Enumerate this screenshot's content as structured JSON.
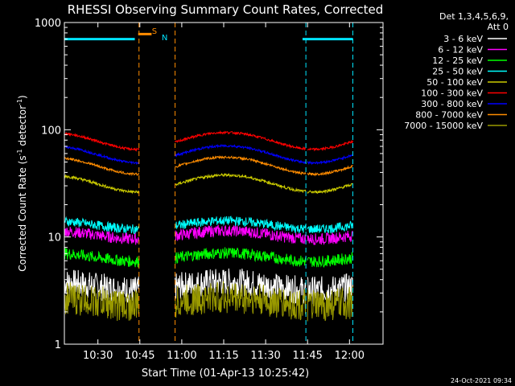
{
  "chart_data": {
    "type": "line",
    "title": "RHESSI Observing Summary Count Rates, Corrected",
    "xlabel": "Start Time (01-Apr-13 10:25:42)",
    "ylabel_main": "Corrected Count Rate (s",
    "ylabel_sup1": "-1",
    "ylabel_mid": " detector",
    "ylabel_sup2": "-1",
    "ylabel_end": ")",
    "yscale": "log",
    "ylim": [
      1,
      1000
    ],
    "xlim_minutes": [
      10.3,
      12.2
    ],
    "x_ticks": [
      {
        "label": "10:30",
        "value": 10.5
      },
      {
        "label": "10:45",
        "value": 10.75
      },
      {
        "label": "11:00",
        "value": 11.0
      },
      {
        "label": "11:15",
        "value": 11.25
      },
      {
        "label": "11:30",
        "value": 11.5
      },
      {
        "label": "11:45",
        "value": 11.75
      },
      {
        "label": "12:00",
        "value": 12.0
      }
    ],
    "y_ticks": [
      {
        "label": "1",
        "value": 1
      },
      {
        "label": "10",
        "value": 10
      },
      {
        "label": "100",
        "value": 100
      },
      {
        "label": "1000",
        "value": 1000
      }
    ],
    "legend_header": [
      "Det 1,3,4,5,6,9,",
      "Att 0"
    ],
    "legend_position": "right",
    "footer_date": "24-Oct-2021 09:34",
    "flags": [
      {
        "label": "S",
        "color": "#ff8c00",
        "x": 10.86
      },
      {
        "label": "N",
        "color": "#00e5ff",
        "x": 10.88
      }
    ],
    "attenuator_segments": [
      {
        "x0": 10.3,
        "x1": 10.72,
        "y": 700,
        "color": "#00e5ff"
      },
      {
        "x0": 11.72,
        "x1": 12.02,
        "y": 700,
        "color": "#00e5ff"
      },
      {
        "x0": 10.74,
        "x1": 10.82,
        "y": 780,
        "color": "#ff8c00"
      }
    ],
    "gaps": [
      {
        "x0": 10.745,
        "x1": 10.96,
        "dash_color": "#ff8c00"
      },
      {
        "x0": 11.74,
        "x1": 12.02,
        "dash_color": "#00e5ff"
      }
    ],
    "series": [
      {
        "name": "3 - 6 keV",
        "color": "#ffffff",
        "base": 3.5,
        "noise": 0.6
      },
      {
        "name": "6 - 12 keV",
        "color": "#ff00ff",
        "base": 10.5,
        "noise": 0.25
      },
      {
        "name": "12 - 25 keV",
        "color": "#00ff00",
        "base": 6.5,
        "noise": 0.25
      },
      {
        "name": "25 - 50 keV",
        "color": "#00ffff",
        "base": 13,
        "noise": 0.2
      },
      {
        "name": "50 - 100 keV",
        "color": "#cccc00",
        "base": 32,
        "noise": 0.06
      },
      {
        "name": "100 - 300 keV",
        "color": "#ff0000",
        "base": 80,
        "noise": 0.05
      },
      {
        "name": "300 - 800 keV",
        "color": "#0000ff",
        "base": 60,
        "noise": 0.05
      },
      {
        "name": "800 - 7000 keV",
        "color": "#ff8c00",
        "base": 47,
        "noise": 0.05
      },
      {
        "name": "7000 - 15000 keV",
        "color": "#999900",
        "base": 2.5,
        "noise": 0.7
      }
    ]
  }
}
